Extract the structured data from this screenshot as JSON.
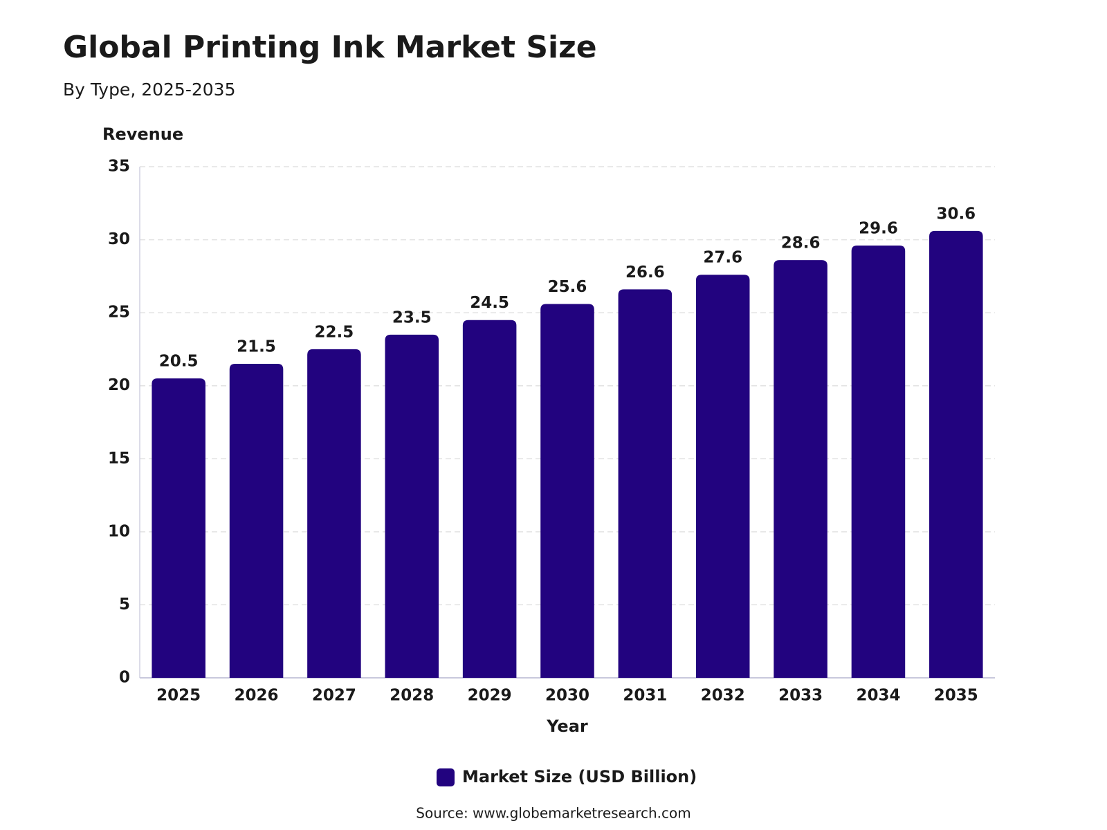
{
  "chart_data": {
    "type": "bar",
    "title": "Global Printing Ink Market Size",
    "subtitle": "By Type, 2025-2035",
    "y_label": "Revenue",
    "x_label": "Year",
    "source": "Source: www.globemarketresearch.com",
    "categories": [
      "2025",
      "2026",
      "2027",
      "2028",
      "2029",
      "2030",
      "2031",
      "2032",
      "2033",
      "2034",
      "2035"
    ],
    "series": [
      {
        "name": "Market Size (USD Billion)",
        "color": "#22037f",
        "values": [
          20.5,
          21.5,
          22.5,
          23.5,
          24.5,
          25.6,
          26.6,
          27.6,
          28.6,
          29.6,
          30.6
        ]
      }
    ],
    "ylim": [
      0,
      35
    ],
    "yticks": [
      0,
      5,
      10,
      15,
      20,
      25,
      30,
      35
    ],
    "grid": true,
    "legend": "bottom"
  }
}
